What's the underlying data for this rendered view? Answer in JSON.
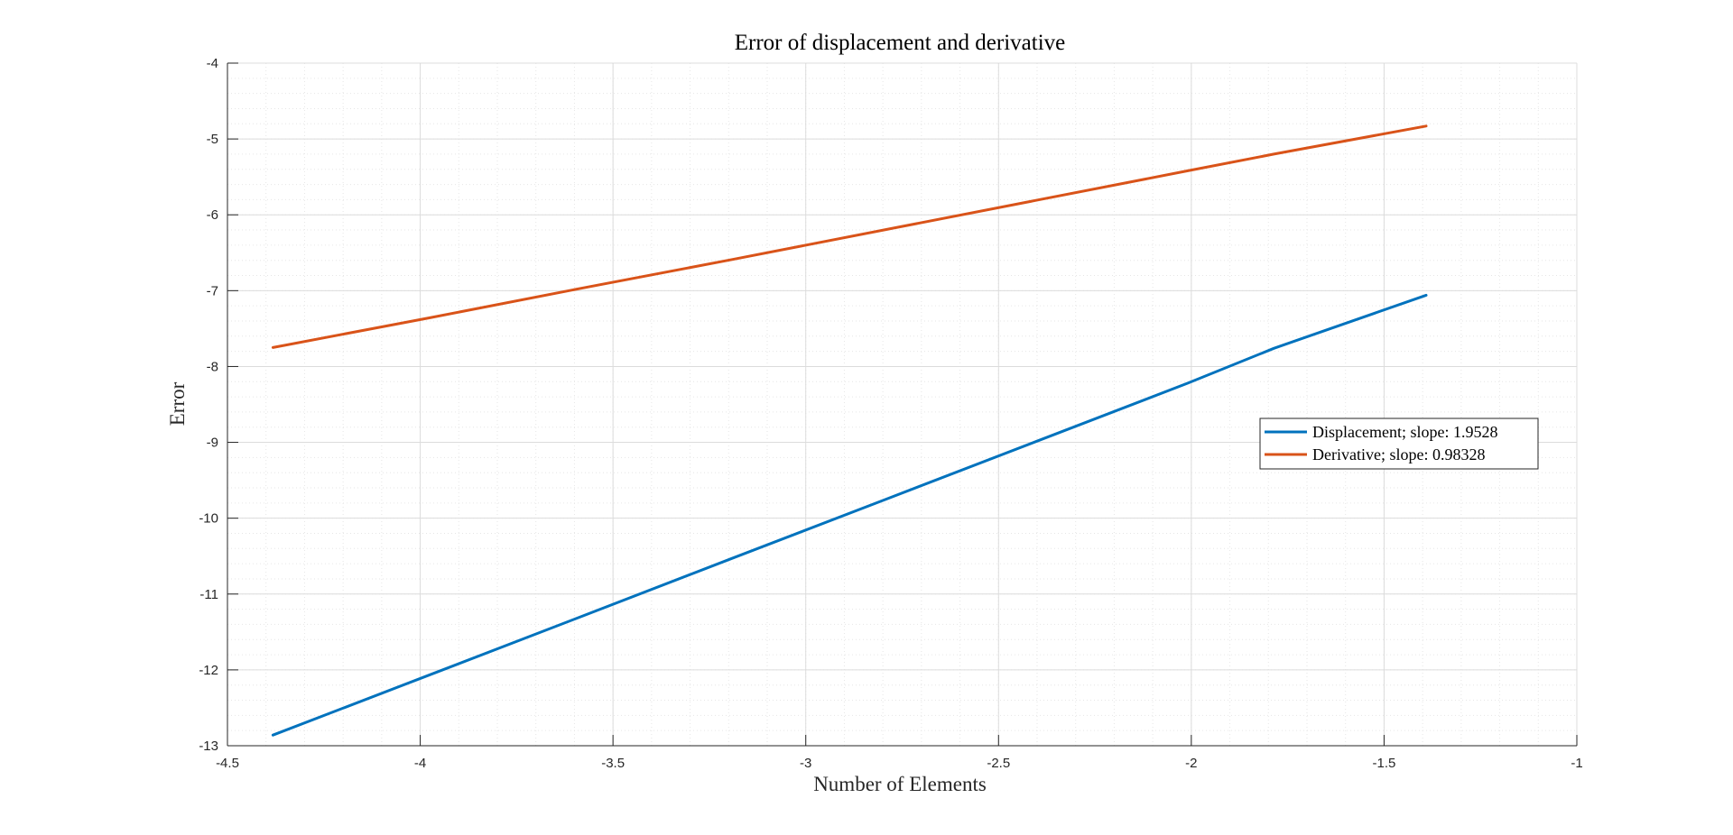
{
  "chart_data": {
    "type": "line",
    "title": "Error of displacement and derivative",
    "xlabel": "Number of Elements",
    "ylabel": "Error",
    "xlim": [
      -4.5,
      -1
    ],
    "ylim": [
      -13,
      -4
    ],
    "xticks": [
      -4.5,
      -4,
      -3.5,
      -3,
      -2.5,
      -2,
      -1.5,
      -1
    ],
    "xtick_labels": [
      "-4.5",
      "-4",
      "-3.5",
      "-3",
      "-2.5",
      "-2",
      "-1.5",
      "-1"
    ],
    "yticks": [
      -13,
      -12,
      -11,
      -10,
      -9,
      -8,
      -7,
      -6,
      -5,
      -4
    ],
    "ytick_labels": [
      "-13",
      "-12",
      "-11",
      "-10",
      "-9",
      "-8",
      "-7",
      "-6",
      "-5",
      "-4"
    ],
    "grid": true,
    "minor_grid": true,
    "legend_position": "east",
    "series": [
      {
        "name": "Displacement; slope:  1.9528",
        "color": "#0072BD",
        "x": [
          -4.382,
          -3.978,
          -3.584,
          -3.191,
          -2.797,
          -2.403,
          -2.009,
          -1.786,
          -1.391
        ],
        "y": [
          -12.86,
          -12.07,
          -11.3,
          -10.53,
          -9.76,
          -8.99,
          -8.22,
          -7.76,
          -7.06
        ]
      },
      {
        "name": "Derivative; slope:  0.98328",
        "color": "#D95319",
        "x": [
          -4.382,
          -3.978,
          -3.584,
          -3.191,
          -2.797,
          -2.403,
          -2.009,
          -1.786,
          -1.391
        ],
        "y": [
          -7.75,
          -7.36,
          -6.97,
          -6.59,
          -6.2,
          -5.81,
          -5.42,
          -5.2,
          -4.83
        ]
      }
    ]
  }
}
